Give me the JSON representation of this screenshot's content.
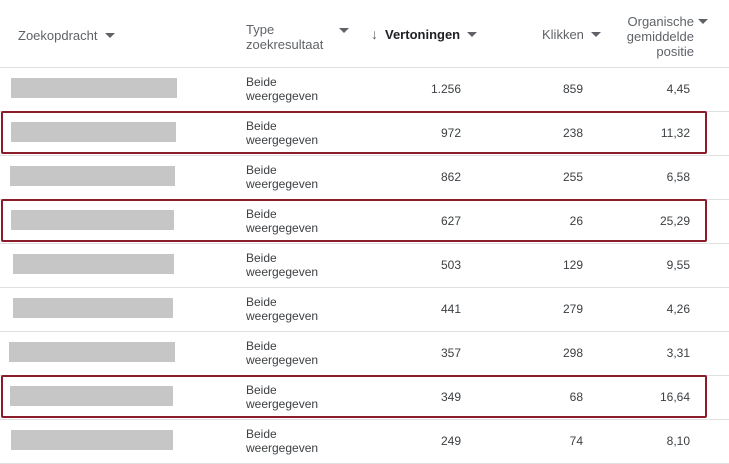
{
  "header": {
    "query": "Zoekopdracht",
    "type_line1": "Type",
    "type_line2": "zoekresultaat",
    "views": "Vertoningen",
    "clicks": "Klikken",
    "pos_line1": "Organische",
    "pos_line2": "gemiddelde",
    "pos_line3": "positie",
    "sort_icon": "arrow-down-icon",
    "caret_icon": "caret-down-icon"
  },
  "colors": {
    "highlight": "#8b1c2a",
    "redacted": "#c6c6c6",
    "divider": "#e0e0e0"
  },
  "rows": [
    {
      "type_line1": "Beide",
      "type_line2": "weergegeven",
      "views": "1.256",
      "clicks": "859",
      "position": "4,45",
      "highlighted": false
    },
    {
      "type_line1": "Beide",
      "type_line2": "weergegeven",
      "views": "972",
      "clicks": "238",
      "position": "11,32",
      "highlighted": true
    },
    {
      "type_line1": "Beide",
      "type_line2": "weergegeven",
      "views": "862",
      "clicks": "255",
      "position": "6,58",
      "highlighted": false
    },
    {
      "type_line1": "Beide",
      "type_line2": "weergegeven",
      "views": "627",
      "clicks": "26",
      "position": "25,29",
      "highlighted": true
    },
    {
      "type_line1": "Beide",
      "type_line2": "weergegeven",
      "views": "503",
      "clicks": "129",
      "position": "9,55",
      "highlighted": false
    },
    {
      "type_line1": "Beide",
      "type_line2": "weergegeven",
      "views": "441",
      "clicks": "279",
      "position": "4,26",
      "highlighted": false
    },
    {
      "type_line1": "Beide",
      "type_line2": "weergegeven",
      "views": "357",
      "clicks": "298",
      "position": "3,31",
      "highlighted": false
    },
    {
      "type_line1": "Beide",
      "type_line2": "weergegeven",
      "views": "349",
      "clicks": "68",
      "position": "16,64",
      "highlighted": true
    },
    {
      "type_line1": "Beide",
      "type_line2": "weergegeven",
      "views": "249",
      "clicks": "74",
      "position": "8,10",
      "highlighted": false
    }
  ]
}
